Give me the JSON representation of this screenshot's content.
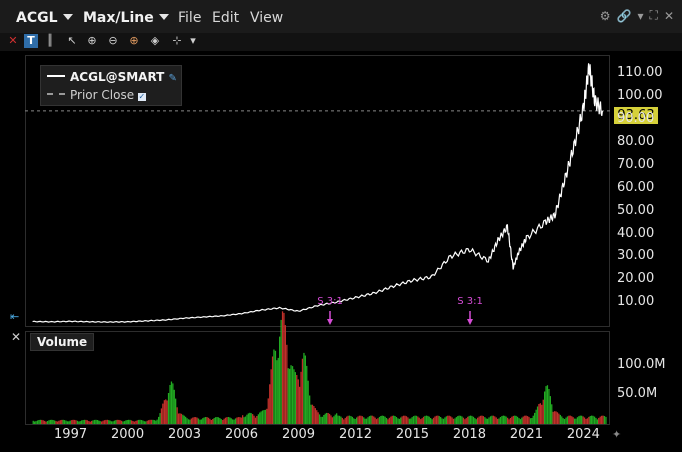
{
  "header": {
    "symbol": "ACGL",
    "chart_mode": "Max/Line",
    "menu": {
      "file": "File",
      "edit": "Edit",
      "view": "View"
    }
  },
  "toolbar": {
    "icons": [
      "close-icon",
      "bar-type-icon",
      "candles-icon",
      "cursor-icon",
      "zoom-in-icon",
      "zoom-out-icon",
      "crosshair-icon",
      "fit-icon",
      "tools-icon",
      "dropdown-icon"
    ]
  },
  "legend": {
    "series": "ACGL@SMART",
    "prior_close": "Prior Close"
  },
  "last_price": "93.63",
  "splits": [
    "S 3:1",
    "S 3:1"
  ],
  "volume_pane": {
    "label": "Volume",
    "yticks": [
      "100.0M",
      "50.0M"
    ]
  },
  "colors": {
    "background": "#000000",
    "price_line": "#ffffff",
    "price_tag": "#d6d13a",
    "split_marker": "#d64cd6",
    "volume_up": "#22aa22",
    "volume_down": "#c0302a"
  },
  "chart_data": {
    "type": "line",
    "title": "",
    "x": [
      1995,
      1996,
      1997,
      1998,
      1999,
      2000,
      2001,
      2002,
      2003,
      2004,
      2005,
      2006,
      2007,
      2008,
      2009,
      2010,
      2011,
      2012,
      2013,
      2014,
      2015,
      2016,
      2017,
      2018,
      2019,
      2019.5,
      2020,
      2020.3,
      2020.6,
      2021,
      2022,
      2022.5,
      2023,
      2023.5,
      2024,
      2024.3,
      2024.6,
      2025
    ],
    "series": [
      {
        "name": "ACGL@SMART",
        "values": [
          1.5,
          1.4,
          1.6,
          1.4,
          1.3,
          1.4,
          1.8,
          2.2,
          3.0,
          3.5,
          4.0,
          5.0,
          6.5,
          7.5,
          6.0,
          8.5,
          10.0,
          12.0,
          14.0,
          17.0,
          19.5,
          21.0,
          30.0,
          33.0,
          28.0,
          37.0,
          43.0,
          25.0,
          32.0,
          38.0,
          45.0,
          48.0,
          63.0,
          78.0,
          95.0,
          113.0,
          98.0,
          93.63
        ]
      }
    ],
    "xticks": [
      "1997",
      "2000",
      "2003",
      "2006",
      "2009",
      "2012",
      "2015",
      "2018",
      "2021",
      "2024"
    ],
    "yticks": [
      "110.00",
      "100.00",
      "90.00",
      "80.00",
      "70.00",
      "60.00",
      "50.00",
      "40.00",
      "30.00",
      "20.00",
      "10.00"
    ],
    "ylim": [
      0,
      115
    ],
    "prior_close": 93.63,
    "volume": {
      "ylim": [
        0,
        130
      ],
      "peaks": [
        {
          "x": 2008.3,
          "value": 130
        },
        {
          "x": 2007.8,
          "value": 110
        },
        {
          "x": 2009.2,
          "value": 105
        },
        {
          "x": 2002.2,
          "value": 70
        },
        {
          "x": 2022.0,
          "value": 60
        }
      ]
    }
  }
}
